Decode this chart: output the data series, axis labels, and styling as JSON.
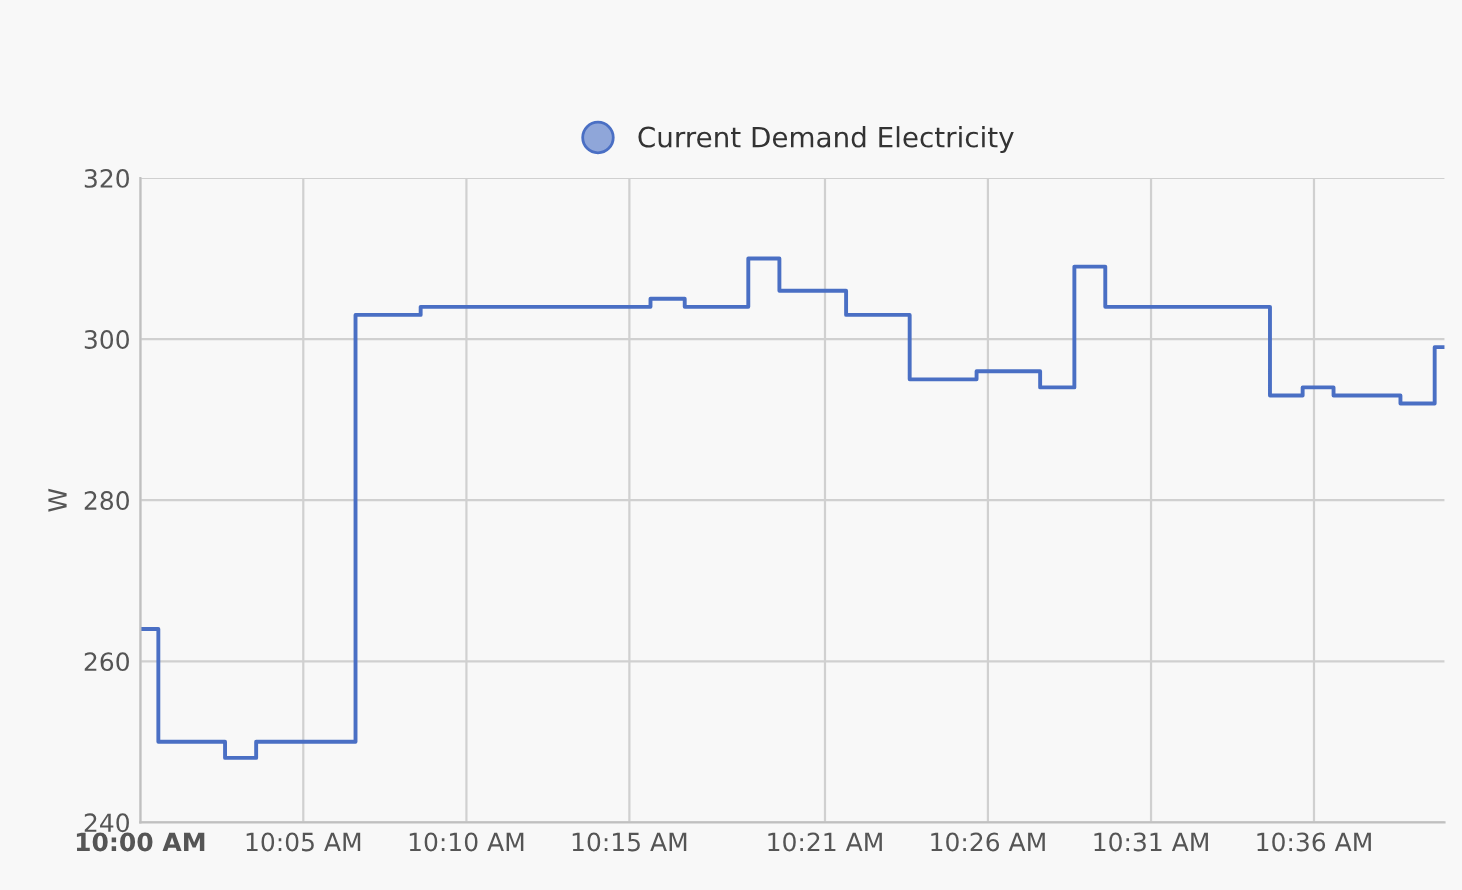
{
  "chart_data": {
    "type": "step",
    "ylabel": "W",
    "x": [
      10.0,
      10.0092,
      10.0433,
      10.0592,
      10.11,
      10.1433,
      10.2608,
      10.2783,
      10.3108,
      10.3267,
      10.3608,
      10.3933,
      10.4275,
      10.46,
      10.4775,
      10.4933,
      10.5775,
      10.5942,
      10.61,
      10.6442,
      10.6617,
      10.6667
    ],
    "series": [
      {
        "name": "Current Demand Electricity",
        "color": "#4a6fc4",
        "values": [
          264,
          250,
          248,
          250,
          303,
          304,
          305,
          304,
          310,
          306,
          303,
          295,
          296,
          294,
          309,
          304,
          293,
          294,
          293,
          292,
          299,
          299
        ]
      }
    ],
    "xlim": [
      10.0,
      10.6667
    ],
    "xticks": [
      {
        "value": 10.0,
        "label": "10:00 AM"
      },
      {
        "value": 10.0833,
        "label": "10:05 AM"
      },
      {
        "value": 10.1667,
        "label": "10:10 AM"
      },
      {
        "value": 10.25,
        "label": "10:15 AM"
      },
      {
        "value": 10.35,
        "label": "10:21 AM"
      },
      {
        "value": 10.4333,
        "label": "10:26 AM"
      },
      {
        "value": 10.5167,
        "label": "10:31 AM"
      },
      {
        "value": 10.6,
        "label": "10:36 AM"
      }
    ],
    "ylim": [
      240,
      320
    ],
    "yticks": [
      240,
      260,
      280,
      300,
      320
    ],
    "grid": true,
    "legend": "top",
    "marker": "none",
    "line_style": "solid"
  }
}
